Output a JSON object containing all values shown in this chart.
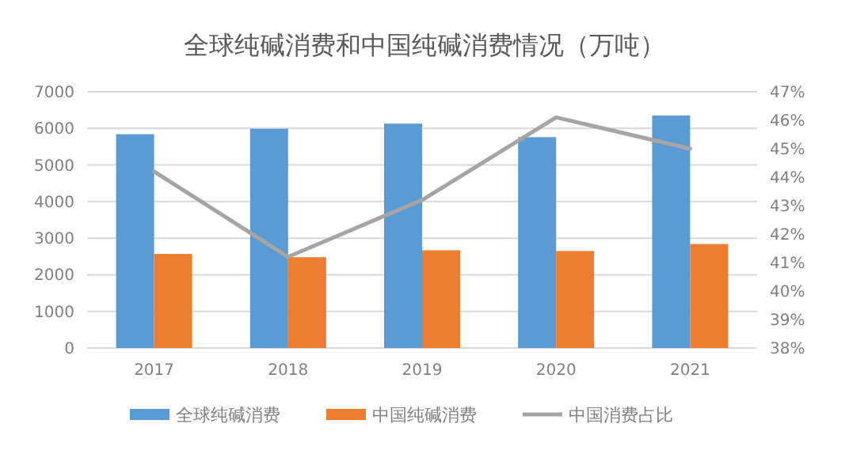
{
  "chart_data": {
    "type": "bar",
    "title": "全球纯碱消费和中国纯碱消费情况（万吨）",
    "categories": [
      "2017",
      "2018",
      "2019",
      "2020",
      "2021"
    ],
    "series": [
      {
        "name": "全球纯碱消费",
        "color": "#5b9bd5",
        "values": [
          5840,
          5990,
          6130,
          5760,
          6350
        ]
      },
      {
        "name": "中国纯碱消费",
        "color": "#ed7d31",
        "values": [
          2570,
          2480,
          2670,
          2650,
          2840
        ]
      },
      {
        "name": "中国消费占比",
        "type": "line",
        "axis": "y2",
        "color": "#a5a5a5",
        "values": [
          44.2,
          41.2,
          43.2,
          46.1,
          45.0
        ]
      }
    ],
    "ylim": [
      0,
      7000
    ],
    "yticks": [
      0,
      1000,
      2000,
      3000,
      4000,
      5000,
      6000,
      7000
    ],
    "y2lim": [
      38,
      47
    ],
    "y2ticks": [
      {
        "value": 38,
        "label": "38%"
      },
      {
        "value": 39,
        "label": "39%"
      },
      {
        "value": 40,
        "label": "40%"
      },
      {
        "value": 41,
        "label": "41%"
      },
      {
        "value": 42,
        "label": "42%"
      },
      {
        "value": 43,
        "label": "43%"
      },
      {
        "value": 44,
        "label": "44%"
      },
      {
        "value": 45,
        "label": "45%"
      },
      {
        "value": 46,
        "label": "46%"
      },
      {
        "value": 47,
        "label": "47%"
      }
    ],
    "grid": "y",
    "legend": "bottom",
    "marker": "none",
    "line_style": "solid"
  }
}
